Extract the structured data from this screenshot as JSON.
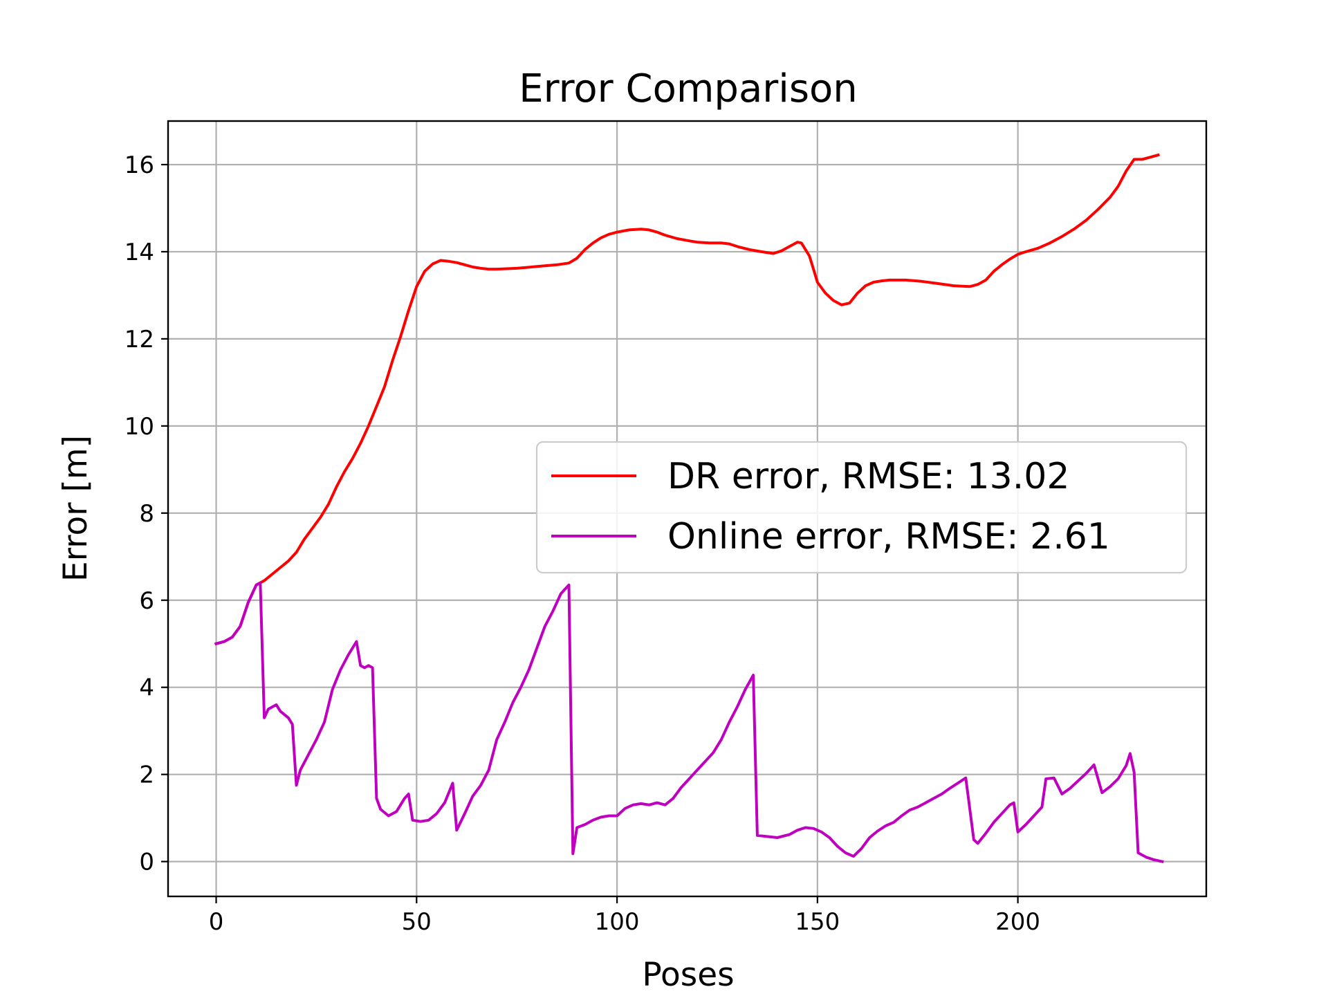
{
  "chart_data": {
    "type": "line",
    "title": "Error Comparison",
    "xlabel": "Poses",
    "ylabel": "Error [m]",
    "xlim": [
      -12,
      247
    ],
    "ylim": [
      -0.8,
      17.0
    ],
    "xticks": [
      0,
      50,
      100,
      150,
      200
    ],
    "yticks": [
      0,
      2,
      4,
      6,
      8,
      10,
      12,
      14,
      16
    ],
    "grid": true,
    "legend_position": "center-right",
    "series": [
      {
        "name": "DR error, RMSE: 13.02",
        "color": "#ff0000",
        "points": [
          [
            0,
            5.0
          ],
          [
            2,
            5.05
          ],
          [
            4,
            5.15
          ],
          [
            6,
            5.4
          ],
          [
            8,
            5.95
          ],
          [
            10,
            6.35
          ],
          [
            12,
            6.45
          ],
          [
            14,
            6.6
          ],
          [
            16,
            6.75
          ],
          [
            18,
            6.9
          ],
          [
            20,
            7.1
          ],
          [
            22,
            7.4
          ],
          [
            24,
            7.65
          ],
          [
            26,
            7.9
          ],
          [
            28,
            8.2
          ],
          [
            30,
            8.6
          ],
          [
            32,
            8.95
          ],
          [
            34,
            9.25
          ],
          [
            36,
            9.6
          ],
          [
            38,
            10.0
          ],
          [
            40,
            10.45
          ],
          [
            42,
            10.9
          ],
          [
            44,
            11.5
          ],
          [
            46,
            12.05
          ],
          [
            48,
            12.65
          ],
          [
            50,
            13.2
          ],
          [
            52,
            13.55
          ],
          [
            54,
            13.72
          ],
          [
            56,
            13.8
          ],
          [
            58,
            13.78
          ],
          [
            60,
            13.75
          ],
          [
            62,
            13.7
          ],
          [
            64,
            13.65
          ],
          [
            66,
            13.62
          ],
          [
            68,
            13.6
          ],
          [
            70,
            13.6
          ],
          [
            75,
            13.62
          ],
          [
            80,
            13.66
          ],
          [
            85,
            13.7
          ],
          [
            88,
            13.74
          ],
          [
            90,
            13.85
          ],
          [
            92,
            14.05
          ],
          [
            94,
            14.2
          ],
          [
            96,
            14.32
          ],
          [
            98,
            14.4
          ],
          [
            100,
            14.45
          ],
          [
            103,
            14.5
          ],
          [
            106,
            14.52
          ],
          [
            108,
            14.5
          ],
          [
            110,
            14.45
          ],
          [
            112,
            14.38
          ],
          [
            115,
            14.3
          ],
          [
            118,
            14.25
          ],
          [
            120,
            14.22
          ],
          [
            123,
            14.2
          ],
          [
            126,
            14.2
          ],
          [
            128,
            14.18
          ],
          [
            130,
            14.12
          ],
          [
            133,
            14.05
          ],
          [
            136,
            14.0
          ],
          [
            139,
            13.96
          ],
          [
            141,
            14.02
          ],
          [
            143,
            14.12
          ],
          [
            145,
            14.22
          ],
          [
            146,
            14.2
          ],
          [
            148,
            13.9
          ],
          [
            149,
            13.6
          ],
          [
            150,
            13.3
          ],
          [
            152,
            13.05
          ],
          [
            154,
            12.88
          ],
          [
            156,
            12.78
          ],
          [
            158,
            12.82
          ],
          [
            160,
            13.05
          ],
          [
            162,
            13.22
          ],
          [
            164,
            13.3
          ],
          [
            166,
            13.33
          ],
          [
            168,
            13.35
          ],
          [
            172,
            13.35
          ],
          [
            176,
            13.32
          ],
          [
            180,
            13.27
          ],
          [
            184,
            13.22
          ],
          [
            188,
            13.2
          ],
          [
            190,
            13.25
          ],
          [
            192,
            13.35
          ],
          [
            194,
            13.55
          ],
          [
            196,
            13.7
          ],
          [
            198,
            13.83
          ],
          [
            200,
            13.94
          ],
          [
            202,
            14.0
          ],
          [
            205,
            14.08
          ],
          [
            208,
            14.2
          ],
          [
            211,
            14.35
          ],
          [
            214,
            14.52
          ],
          [
            217,
            14.72
          ],
          [
            220,
            14.97
          ],
          [
            223,
            15.25
          ],
          [
            225,
            15.5
          ],
          [
            227,
            15.85
          ],
          [
            229,
            16.12
          ],
          [
            231,
            16.12
          ],
          [
            233,
            16.17
          ],
          [
            235,
            16.22
          ]
        ]
      },
      {
        "name": "Online error, RMSE: 2.61",
        "color": "#bf00bf",
        "points": [
          [
            0,
            5.0
          ],
          [
            2,
            5.05
          ],
          [
            4,
            5.15
          ],
          [
            6,
            5.4
          ],
          [
            8,
            5.95
          ],
          [
            10,
            6.35
          ],
          [
            11,
            6.4
          ],
          [
            12,
            3.3
          ],
          [
            13,
            3.5
          ],
          [
            15,
            3.6
          ],
          [
            16,
            3.45
          ],
          [
            18,
            3.3
          ],
          [
            19,
            3.15
          ],
          [
            20,
            1.75
          ],
          [
            21,
            2.1
          ],
          [
            23,
            2.45
          ],
          [
            25,
            2.8
          ],
          [
            27,
            3.2
          ],
          [
            29,
            3.95
          ],
          [
            31,
            4.4
          ],
          [
            33,
            4.75
          ],
          [
            35,
            5.05
          ],
          [
            36,
            4.5
          ],
          [
            37,
            4.45
          ],
          [
            38,
            4.5
          ],
          [
            39,
            4.45
          ],
          [
            40,
            1.45
          ],
          [
            41,
            1.2
          ],
          [
            43,
            1.05
          ],
          [
            45,
            1.15
          ],
          [
            47,
            1.45
          ],
          [
            48,
            1.55
          ],
          [
            49,
            0.95
          ],
          [
            51,
            0.92
          ],
          [
            53,
            0.95
          ],
          [
            55,
            1.1
          ],
          [
            57,
            1.35
          ],
          [
            59,
            1.8
          ],
          [
            60,
            0.72
          ],
          [
            62,
            1.1
          ],
          [
            64,
            1.5
          ],
          [
            66,
            1.75
          ],
          [
            68,
            2.1
          ],
          [
            70,
            2.8
          ],
          [
            72,
            3.2
          ],
          [
            74,
            3.65
          ],
          [
            76,
            4.0
          ],
          [
            78,
            4.4
          ],
          [
            80,
            4.9
          ],
          [
            82,
            5.4
          ],
          [
            84,
            5.75
          ],
          [
            86,
            6.15
          ],
          [
            88,
            6.35
          ],
          [
            89,
            0.18
          ],
          [
            90,
            0.78
          ],
          [
            92,
            0.85
          ],
          [
            94,
            0.95
          ],
          [
            96,
            1.02
          ],
          [
            98,
            1.05
          ],
          [
            100,
            1.05
          ],
          [
            102,
            1.22
          ],
          [
            104,
            1.3
          ],
          [
            106,
            1.33
          ],
          [
            108,
            1.3
          ],
          [
            110,
            1.35
          ],
          [
            112,
            1.3
          ],
          [
            114,
            1.45
          ],
          [
            116,
            1.7
          ],
          [
            118,
            1.9
          ],
          [
            120,
            2.1
          ],
          [
            122,
            2.3
          ],
          [
            124,
            2.5
          ],
          [
            126,
            2.8
          ],
          [
            128,
            3.2
          ],
          [
            130,
            3.55
          ],
          [
            132,
            3.95
          ],
          [
            134,
            4.28
          ],
          [
            135,
            0.6
          ],
          [
            137,
            0.58
          ],
          [
            140,
            0.55
          ],
          [
            143,
            0.62
          ],
          [
            145,
            0.72
          ],
          [
            147,
            0.78
          ],
          [
            149,
            0.76
          ],
          [
            151,
            0.68
          ],
          [
            153,
            0.55
          ],
          [
            155,
            0.35
          ],
          [
            157,
            0.2
          ],
          [
            159,
            0.12
          ],
          [
            161,
            0.3
          ],
          [
            163,
            0.55
          ],
          [
            165,
            0.7
          ],
          [
            167,
            0.82
          ],
          [
            169,
            0.9
          ],
          [
            171,
            1.05
          ],
          [
            173,
            1.18
          ],
          [
            175,
            1.25
          ],
          [
            177,
            1.35
          ],
          [
            179,
            1.45
          ],
          [
            181,
            1.55
          ],
          [
            183,
            1.68
          ],
          [
            185,
            1.8
          ],
          [
            187,
            1.92
          ],
          [
            189,
            0.5
          ],
          [
            190,
            0.42
          ],
          [
            192,
            0.65
          ],
          [
            194,
            0.9
          ],
          [
            196,
            1.1
          ],
          [
            198,
            1.3
          ],
          [
            199,
            1.35
          ],
          [
            200,
            0.68
          ],
          [
            202,
            0.85
          ],
          [
            204,
            1.05
          ],
          [
            206,
            1.25
          ],
          [
            207,
            1.9
          ],
          [
            209,
            1.92
          ],
          [
            211,
            1.55
          ],
          [
            213,
            1.68
          ],
          [
            215,
            1.85
          ],
          [
            217,
            2.02
          ],
          [
            219,
            2.22
          ],
          [
            221,
            1.58
          ],
          [
            223,
            1.72
          ],
          [
            225,
            1.9
          ],
          [
            227,
            2.2
          ],
          [
            228,
            2.48
          ],
          [
            229,
            2.05
          ],
          [
            230,
            0.2
          ],
          [
            232,
            0.1
          ],
          [
            234,
            0.04
          ],
          [
            236,
            0.0
          ]
        ]
      }
    ]
  }
}
